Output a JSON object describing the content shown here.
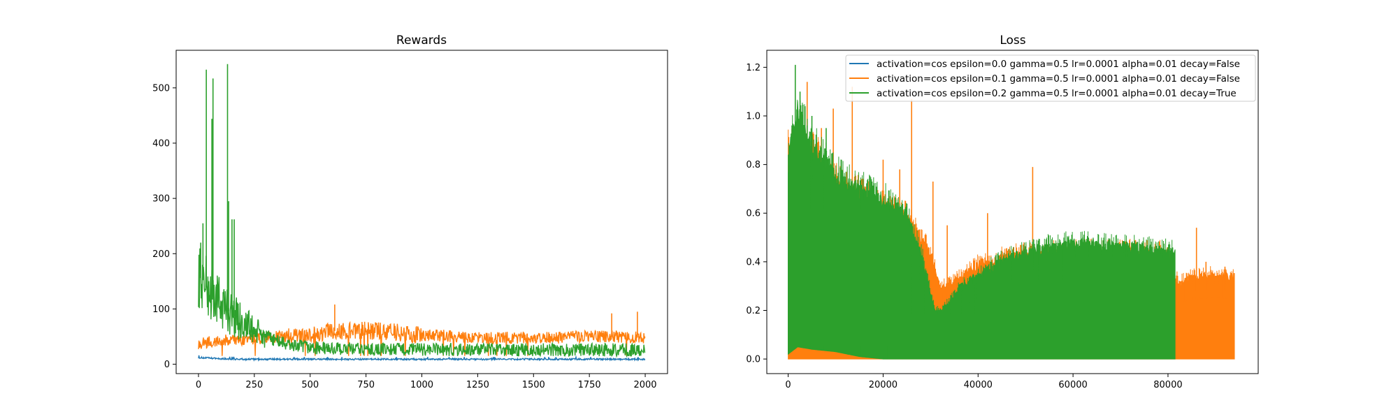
{
  "chart_data": [
    {
      "type": "line",
      "title": "Rewards",
      "xlabel": "",
      "ylabel": "",
      "xlim": [
        -100,
        2100
      ],
      "ylim": [
        -17,
        568
      ],
      "xticks": [
        0,
        250,
        500,
        750,
        1000,
        1250,
        1500,
        1750,
        2000
      ],
      "yticks": [
        0,
        100,
        200,
        300,
        400,
        500
      ],
      "grid": false,
      "legend": false,
      "series": [
        {
          "color": "#1f77b4",
          "x": [
            0,
            50,
            100,
            200,
            400,
            750,
            1000,
            1500,
            2000
          ],
          "y": [
            12,
            11,
            10,
            9,
            9,
            9,
            9,
            9,
            9
          ]
        },
        {
          "color": "#ff7f0e",
          "x": [
            0,
            100,
            200,
            300,
            400,
            500,
            600,
            700,
            800,
            900,
            1000,
            1100,
            1200,
            1300,
            1400,
            1500,
            1600,
            1700,
            1800,
            1900,
            2000
          ],
          "y": [
            38,
            42,
            45,
            48,
            50,
            52,
            60,
            62,
            60,
            57,
            52,
            52,
            48,
            47,
            48,
            48,
            48,
            50,
            50,
            50,
            48
          ]
        },
        {
          "color": "#2ca02c",
          "x": [
            0,
            25,
            50,
            75,
            100,
            150,
            200,
            250,
            300,
            350,
            400,
            500,
            600,
            750,
            1000,
            1250,
            1500,
            1750,
            2000
          ],
          "y": [
            160,
            150,
            130,
            120,
            110,
            90,
            75,
            60,
            50,
            43,
            35,
            30,
            28,
            27,
            27,
            26,
            26,
            26,
            26
          ]
        }
      ],
      "peaks": [
        {
          "series": 2,
          "x": 35,
          "y": 533
        },
        {
          "series": 2,
          "x": 60,
          "y": 444
        },
        {
          "series": 2,
          "x": 65,
          "y": 517
        },
        {
          "series": 2,
          "x": 130,
          "y": 543
        },
        {
          "series": 2,
          "x": 135,
          "y": 295
        },
        {
          "series": 2,
          "x": 150,
          "y": 262
        },
        {
          "series": 2,
          "x": 160,
          "y": 262
        },
        {
          "series": 2,
          "x": 20,
          "y": 255
        },
        {
          "series": 2,
          "x": 10,
          "y": 220
        },
        {
          "series": 1,
          "x": 610,
          "y": 108
        },
        {
          "series": 1,
          "x": 1850,
          "y": 92
        },
        {
          "series": 1,
          "x": 1965,
          "y": 95
        }
      ]
    },
    {
      "type": "line",
      "title": "Loss",
      "xlabel": "",
      "ylabel": "",
      "xlim": [
        -4500,
        99000
      ],
      "ylim": [
        -0.06,
        1.27
      ],
      "xticks": [
        0,
        20000,
        40000,
        60000,
        80000
      ],
      "yticks": [
        0.0,
        0.2,
        0.4,
        0.6,
        0.8,
        1.0,
        1.2
      ],
      "grid": false,
      "legend": "top-right",
      "series": [
        {
          "name": "activation=cos epsilon=0.0 gamma=0.5 lr=0.0001 alpha=0.01 decay=False",
          "color": "#1f77b4",
          "x": [],
          "y": []
        },
        {
          "name": "activation=cos epsilon=0.1 gamma=0.5 lr=0.0001 alpha=0.01 decay=False",
          "color": "#ff7f0e",
          "x": [
            0,
            94000
          ],
          "y": [
            0.0,
            0.0
          ],
          "upper_envelope": {
            "x": [
              0,
              5000,
              10000,
              15000,
              20000,
              25000,
              30000,
              32000,
              35000,
              40000,
              45000,
              50000,
              55000,
              60000,
              65000,
              70000,
              75000,
              80000,
              81500,
              82000,
              85000,
              90000,
              94000
            ],
            "y": [
              0.9,
              0.88,
              0.75,
              0.7,
              0.65,
              0.6,
              0.45,
              0.3,
              0.33,
              0.4,
              0.43,
              0.45,
              0.46,
              0.46,
              0.46,
              0.46,
              0.46,
              0.45,
              0.36,
              0.33,
              0.35,
              0.36,
              0.35
            ]
          },
          "spikes": [
            {
              "x": 4000,
              "y": 1.14
            },
            {
              "x": 7000,
              "y": 0.95
            },
            {
              "x": 9500,
              "y": 1.03
            },
            {
              "x": 13500,
              "y": 1.12
            },
            {
              "x": 26000,
              "y": 1.07
            },
            {
              "x": 20000,
              "y": 0.82
            },
            {
              "x": 23500,
              "y": 0.78
            },
            {
              "x": 30500,
              "y": 0.73
            },
            {
              "x": 33500,
              "y": 0.55
            },
            {
              "x": 42000,
              "y": 0.6
            },
            {
              "x": 51500,
              "y": 0.79
            },
            {
              "x": 86000,
              "y": 0.54
            },
            {
              "x": 88000,
              "y": 0.4
            },
            {
              "x": 92000,
              "y": 0.38
            }
          ]
        },
        {
          "name": "activation=cos epsilon=0.2 gamma=0.5 lr=0.0001 alpha=0.01 decay=True",
          "color": "#2ca02c",
          "x": [
            0,
            81500
          ],
          "y": [
            0.0,
            0.0
          ],
          "upper_envelope": {
            "x": [
              0,
              2000,
              5000,
              10000,
              15000,
              20000,
              25000,
              28000,
              31000,
              33000,
              36000,
              40000,
              45000,
              50000,
              55000,
              60000,
              65000,
              70000,
              75000,
              80000,
              81500
            ],
            "y": [
              0.85,
              1.05,
              0.92,
              0.78,
              0.72,
              0.68,
              0.6,
              0.45,
              0.2,
              0.22,
              0.3,
              0.35,
              0.42,
              0.45,
              0.48,
              0.49,
              0.49,
              0.48,
              0.47,
              0.46,
              0.46
            ]
          },
          "lower_envelope": {
            "x": [
              0,
              2000,
              5000,
              10000,
              15000,
              20000,
              81500
            ],
            "y": [
              0.02,
              0.05,
              0.04,
              0.03,
              0.01,
              0.0,
              0.0
            ]
          },
          "spikes": [
            {
              "x": 1500,
              "y": 1.21
            },
            {
              "x": 2500,
              "y": 1.1
            },
            {
              "x": 5000,
              "y": 1.0
            },
            {
              "x": 8000,
              "y": 0.95
            }
          ]
        }
      ]
    }
  ]
}
